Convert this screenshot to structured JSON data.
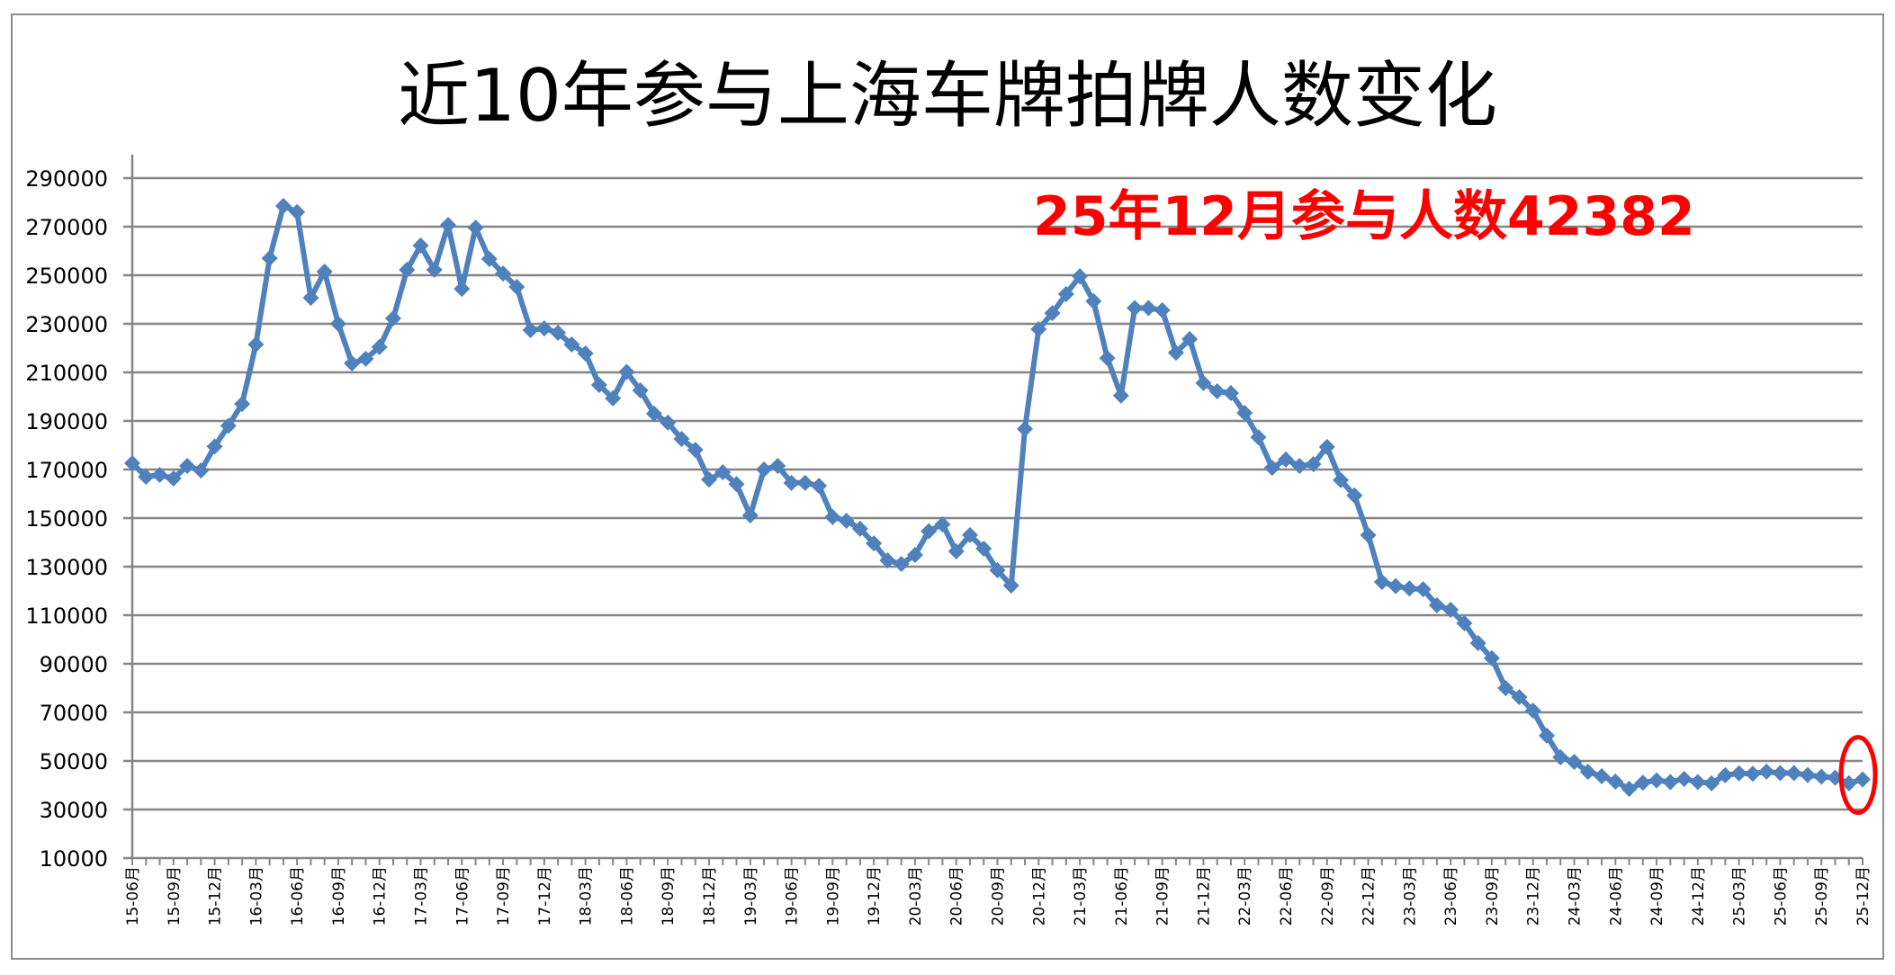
{
  "title": "近10年参与上海车牌拍牌人数变化",
  "annotation": {
    "text": "25年12月参与人数42382",
    "color": "#ff0000",
    "highlight_circle_color": "#ff0000"
  },
  "colors": {
    "series": "#4f81bd",
    "gridline": "#868686",
    "axis": "#868686",
    "frame": "#8c8c8c"
  },
  "chart_data": {
    "type": "line",
    "title": "近10年参与上海车牌拍牌人数变化",
    "xlabel": "",
    "ylabel": "",
    "ylim": [
      10000,
      290000
    ],
    "yticks": [
      10000,
      30000,
      50000,
      70000,
      90000,
      110000,
      130000,
      150000,
      170000,
      190000,
      210000,
      230000,
      250000,
      270000,
      290000
    ],
    "grid": true,
    "legend": "none",
    "marker": "diamond",
    "x_label_interval": 3,
    "x_label_suffix": "月",
    "x": [
      "15-06",
      "15-07",
      "15-08",
      "15-09",
      "15-10",
      "15-11",
      "15-12",
      "16-01",
      "16-02",
      "16-03",
      "16-04",
      "16-05",
      "16-06",
      "16-07",
      "16-08",
      "16-09",
      "16-10",
      "16-11",
      "16-12",
      "17-01",
      "17-02",
      "17-03",
      "17-04",
      "17-05",
      "17-06",
      "17-07",
      "17-08",
      "17-09",
      "17-10",
      "17-11",
      "17-12",
      "18-01",
      "18-02",
      "18-03",
      "18-04",
      "18-05",
      "18-06",
      "18-07",
      "18-08",
      "18-09",
      "18-10",
      "18-11",
      "18-12",
      "19-01",
      "19-02",
      "19-03",
      "19-04",
      "19-05",
      "19-06",
      "19-07",
      "19-08",
      "19-09",
      "19-10",
      "19-11",
      "19-12",
      "20-01",
      "20-02",
      "20-03",
      "20-04",
      "20-05",
      "20-06",
      "20-07",
      "20-08",
      "20-09",
      "20-10",
      "20-11",
      "20-12",
      "21-01",
      "21-02",
      "21-03",
      "21-04",
      "21-05",
      "21-06",
      "21-07",
      "21-08",
      "21-09",
      "21-10",
      "21-11",
      "21-12",
      "22-01",
      "22-02",
      "22-03",
      "22-04",
      "22-05",
      "22-06",
      "22-07",
      "22-08",
      "22-09",
      "22-10",
      "22-11",
      "22-12",
      "23-01",
      "23-02",
      "23-03",
      "23-04",
      "23-05",
      "23-06",
      "23-07",
      "23-08",
      "23-09",
      "23-10",
      "23-11",
      "23-12",
      "24-01",
      "24-02",
      "24-03",
      "24-04",
      "24-05",
      "24-06",
      "24-07",
      "24-08",
      "24-09",
      "24-10",
      "24-11",
      "24-12",
      "25-01",
      "25-02",
      "25-03",
      "25-04",
      "25-05",
      "25-06",
      "25-07",
      "25-08",
      "25-09",
      "25-10",
      "25-11",
      "25-12"
    ],
    "series": [
      {
        "name": "参与人数",
        "values": [
          172600,
          167000,
          167800,
          166300,
          171500,
          169600,
          179500,
          188000,
          197000,
          221500,
          257000,
          278500,
          276000,
          240700,
          251500,
          230000,
          213700,
          215600,
          220400,
          232200,
          252200,
          262200,
          252200,
          270700,
          244400,
          269600,
          256700,
          250700,
          245200,
          227400,
          228100,
          226300,
          221500,
          217800,
          204800,
          199300,
          210200,
          202600,
          193000,
          189300,
          182600,
          178100,
          165900,
          168900,
          164000,
          151100,
          170000,
          171500,
          164500,
          164500,
          163300,
          150400,
          148900,
          145600,
          139600,
          132600,
          131100,
          134800,
          144600,
          147400,
          136300,
          143000,
          137400,
          128500,
          122200,
          186700,
          227800,
          234400,
          242200,
          249600,
          239300,
          215900,
          200400,
          236500,
          236500,
          235600,
          218100,
          223700,
          205600,
          202200,
          201500,
          193300,
          183300,
          170700,
          174100,
          171500,
          172200,
          179300,
          165600,
          159300,
          143000,
          123700,
          122000,
          121000,
          120700,
          114100,
          112200,
          106700,
          98500,
          92300,
          80000,
          76300,
          70700,
          60400,
          51500,
          49600,
          45500,
          43700,
          41500,
          38500,
          41000,
          42000,
          41300,
          42600,
          41300,
          40800,
          44100,
          44900,
          44700,
          45600,
          45000,
          45000,
          44200,
          43500,
          43100,
          40800,
          42382
        ]
      }
    ],
    "annotations": [
      {
        "text": "25年12月参与人数42382",
        "color": "#ff0000",
        "target": "25-12"
      }
    ]
  }
}
